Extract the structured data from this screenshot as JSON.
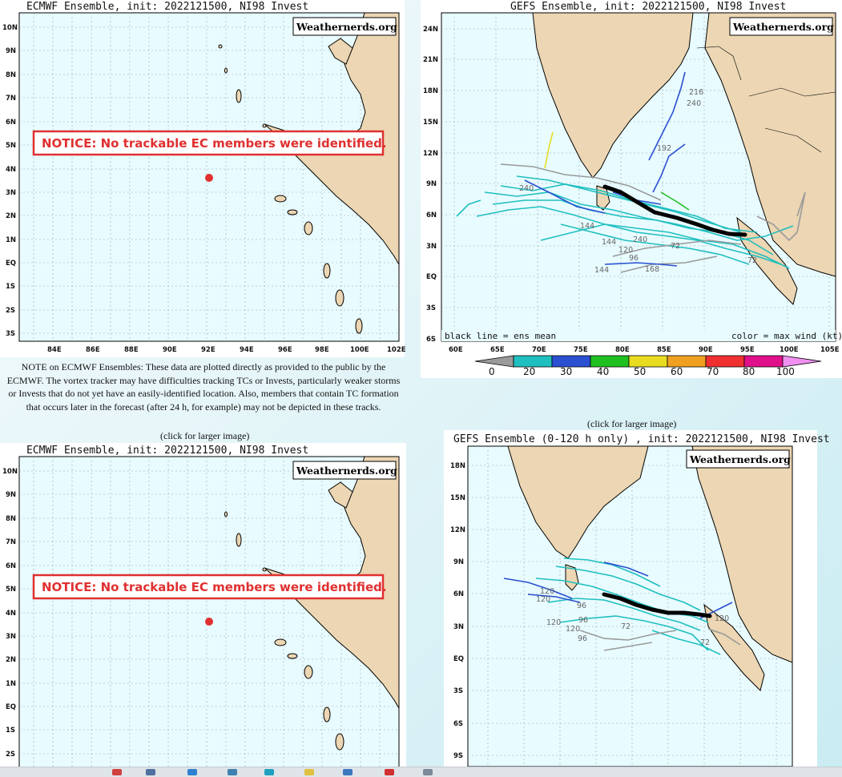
{
  "ecmwf_top": {
    "title": "ECMWF Ensemble, init: 2022121500, NI98 Invest",
    "watermark": "Weathernerds.org",
    "notice": "NOTICE: No trackable EC members were identified.",
    "lat_labels": [
      "10N",
      "9N",
      "8N",
      "7N",
      "6N",
      "5N",
      "4N",
      "3N",
      "2N",
      "1N",
      "EQ",
      "1S",
      "2S",
      "3S"
    ],
    "lon_labels": [
      "84E",
      "86E",
      "88E",
      "90E",
      "92E",
      "94E",
      "96E",
      "98E",
      "100E",
      "102E"
    ]
  },
  "gefs_top": {
    "title": "GEFS Ensemble, init: 2022121500, NI98 Invest",
    "watermark": "Weathernerds.org",
    "lat_labels": [
      "24N",
      "21N",
      "18N",
      "15N",
      "12N",
      "9N",
      "6N",
      "3N",
      "EQ",
      "3S",
      "6S"
    ],
    "lon_labels": [
      "60E",
      "65E",
      "70E",
      "75E",
      "80E",
      "85E",
      "90E",
      "95E",
      "100E",
      "105E"
    ],
    "legend_left": "black line = ens mean",
    "legend_right": "color = max wind (kt)",
    "colorbar_labels": [
      "0",
      "20",
      "30",
      "40",
      "50",
      "60",
      "70",
      "80",
      "100"
    ],
    "colorbar_colors": [
      "#9a9a9a",
      "#1fbfbf",
      "#2a4fd0",
      "#21c021",
      "#e8dc20",
      "#f0a020",
      "#f03030",
      "#e0108a",
      "#f090f0"
    ],
    "track_labels": [
      "240",
      "216",
      "240",
      "144",
      "120",
      "96",
      "168",
      "144",
      "144",
      "72",
      "72",
      "192",
      "240"
    ]
  },
  "ecmwf_note": "NOTE on ECMWF Ensembles: These data are plotted directly as provided to the public by the ECMWF. The vortex tracker may have difficulties tracking TCs or Invests, particularly weaker storms or Invests that do not yet have an easily-identified location. Also, members that contain TC formation that occurs later in the forecast (after 24 h, for example) may not be depicted in these tracks.",
  "click_caption_1": "(click for larger image)",
  "click_caption_2": "(click for larger image)",
  "ecmwf_bottom": {
    "title": "ECMWF Ensemble, init: 2022121500, NI98 Invest",
    "watermark": "Weathernerds.org",
    "notice": "NOTICE: No trackable EC members were identified.",
    "lat_labels": [
      "10N",
      "9N",
      "8N",
      "7N",
      "6N",
      "5N",
      "4N",
      "3N",
      "2N",
      "1N",
      "EQ",
      "1S",
      "2S"
    ]
  },
  "gefs_bottom": {
    "title": "GEFS Ensemble (0-120 h only) , init: 2022121500, NI98 Invest",
    "watermark": "Weathernerds.org",
    "lat_labels": [
      "18N",
      "15N",
      "12N",
      "9N",
      "6N",
      "3N",
      "EQ",
      "3S",
      "6S",
      "9S"
    ],
    "track_labels": [
      "120",
      "120",
      "96",
      "96",
      "120",
      "120",
      "96",
      "72",
      "72",
      "120"
    ]
  },
  "colors": {
    "land": "#ecd6b3",
    "ocean": "#e8fbff",
    "notice_red": "#e03030",
    "ens_mean": "#000000"
  }
}
